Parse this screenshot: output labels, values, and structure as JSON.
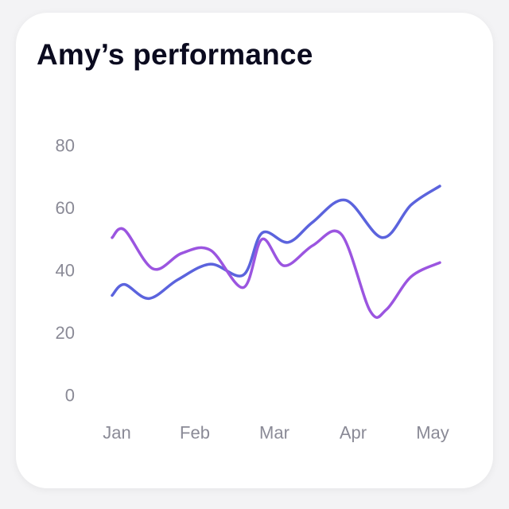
{
  "card": {
    "title": "Amy’s performance"
  },
  "chart_data": {
    "type": "line",
    "title": "Amy’s performance",
    "xlabel": "",
    "ylabel": "",
    "categories": [
      "Jan",
      "Feb",
      "Mar",
      "Apr",
      "May"
    ],
    "yticks": [
      "0",
      "20",
      "40",
      "60",
      "80"
    ],
    "ylim": [
      0,
      80
    ],
    "xlim": [
      0,
      4
    ],
    "grid": false,
    "series": [
      {
        "color": "#5b63dd",
        "points": [
          {
            "x": 0.0,
            "y": 32
          },
          {
            "x": 0.15,
            "y": 35.5
          },
          {
            "x": 0.45,
            "y": 31
          },
          {
            "x": 0.8,
            "y": 37
          },
          {
            "x": 1.2,
            "y": 42
          },
          {
            "x": 1.6,
            "y": 38.5
          },
          {
            "x": 1.83,
            "y": 52
          },
          {
            "x": 2.15,
            "y": 49
          },
          {
            "x": 2.45,
            "y": 55.5
          },
          {
            "x": 2.85,
            "y": 62.5
          },
          {
            "x": 3.3,
            "y": 50.5
          },
          {
            "x": 3.65,
            "y": 61
          },
          {
            "x": 4.0,
            "y": 67
          }
        ]
      },
      {
        "color": "#9b55e0",
        "points": [
          {
            "x": 0.0,
            "y": 50.5
          },
          {
            "x": 0.15,
            "y": 53
          },
          {
            "x": 0.5,
            "y": 40.5
          },
          {
            "x": 0.85,
            "y": 45.5
          },
          {
            "x": 1.2,
            "y": 46.5
          },
          {
            "x": 1.6,
            "y": 34.5
          },
          {
            "x": 1.83,
            "y": 50
          },
          {
            "x": 2.1,
            "y": 41.5
          },
          {
            "x": 2.45,
            "y": 48
          },
          {
            "x": 2.8,
            "y": 51.5
          },
          {
            "x": 3.15,
            "y": 27
          },
          {
            "x": 3.35,
            "y": 27.5
          },
          {
            "x": 3.65,
            "y": 38
          },
          {
            "x": 4.0,
            "y": 42.5
          }
        ]
      }
    ]
  }
}
